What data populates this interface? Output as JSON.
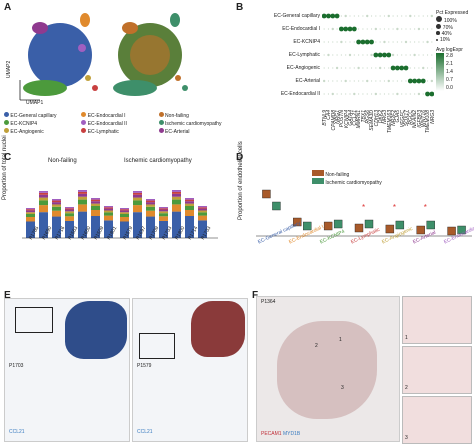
{
  "panels": {
    "A": {
      "letter": "A",
      "axis_x": "UMAP1",
      "axis_y": "UMAP2",
      "legend": [
        {
          "label": "EC-General capillary",
          "color": "#3a5fa8"
        },
        {
          "label": "EC-Endocardial I",
          "color": "#e08a2d"
        },
        {
          "label": "Non-failing",
          "color": "#c0702a"
        },
        {
          "label": "EC-KCNIP4",
          "color": "#4c9a3c"
        },
        {
          "label": "EC-Endocardial II",
          "color": "#a05fc0"
        },
        {
          "label": "Ischemic cardiomyopathy",
          "color": "#3e8f6a"
        },
        {
          "label": "EC-Angiogenic",
          "color": "#c0a03a"
        },
        {
          "label": "EC-Lymphatic",
          "color": "#c84040"
        },
        {
          "label": "EC-Arterial",
          "color": "#8f3a8f"
        }
      ]
    },
    "B": {
      "letter": "B",
      "rows": [
        "EC-General capillary",
        "EC-Endocardial I",
        "EC-KCNIP4",
        "EC-Lymphatic",
        "EC-Angiogenic",
        "EC-Arterial",
        "EC-Endocardial II"
      ],
      "genes": [
        "BTNL9",
        "CA4",
        "CPAMD8",
        "NRG1",
        "POSTN",
        "KCNIP4",
        "GATA4",
        "CCL21",
        "MMRN1",
        "TBX1",
        "RGS6",
        "SEMA3D",
        "CDH13",
        "DKK2",
        "NRG3",
        "TMEM163",
        "NR2F2",
        "GJA5",
        "VEGFC",
        "SOX17",
        "RGCC",
        "NKAIN2",
        "IGFBP3",
        "WNT16",
        "TMEM108",
        "NRG3"
      ],
      "size_legend_title": "Pct Expressed",
      "size_legend": [
        "100%",
        "70%",
        "40%",
        "10%"
      ],
      "color_legend_title": "Avg logExpr",
      "color_legend_ticks": [
        "2.8",
        "2.1",
        "1.4",
        "0.7",
        "0.0"
      ]
    },
    "C": {
      "letter": "C",
      "ylabel": "Proportion of total nuclei",
      "group1": "Non-failing",
      "group2": "Ischemic cardiomyopathy",
      "samples1": [
        "P1785",
        "P1690",
        "P1716",
        "P1563",
        "P1650",
        "P1509",
        "P1801"
      ],
      "samples2": [
        "P1579",
        "P1697",
        "P1709",
        "P1733",
        "P1800",
        "P1714",
        "P1733"
      ]
    },
    "D": {
      "letter": "D",
      "ylabel": "Proportion of endothelial cells",
      "legend": [
        {
          "label": "Non-failing",
          "color": "#a85a2a"
        },
        {
          "label": "Ischemic cardiomyopathy",
          "color": "#3e8f6a"
        }
      ],
      "categories": [
        {
          "label": "EC-General capillary",
          "color": "#3a5fa8"
        },
        {
          "label": "EC-Endocardial I",
          "color": "#e08a2d"
        },
        {
          "label": "EC-KCNIP4",
          "color": "#4c9a3c"
        },
        {
          "label": "EC-Lymphatic",
          "color": "#c84040"
        },
        {
          "label": "EC-Angiogenic",
          "color": "#c0a03a"
        },
        {
          "label": "EC-Arterial",
          "color": "#8f3a8f"
        },
        {
          "label": "EC-Endocardial II",
          "color": "#a05fc0"
        }
      ],
      "sig": "*"
    },
    "E": {
      "letter": "E",
      "sample1": "P1703",
      "sample2": "P1579",
      "stain1": "CCL21",
      "stain2": "CCL21"
    },
    "F": {
      "letter": "F",
      "sample": "P1364",
      "stain_a": "PECAM1",
      "stain_b": "MYD1B",
      "callouts": [
        "1",
        "2",
        "3"
      ]
    }
  }
}
